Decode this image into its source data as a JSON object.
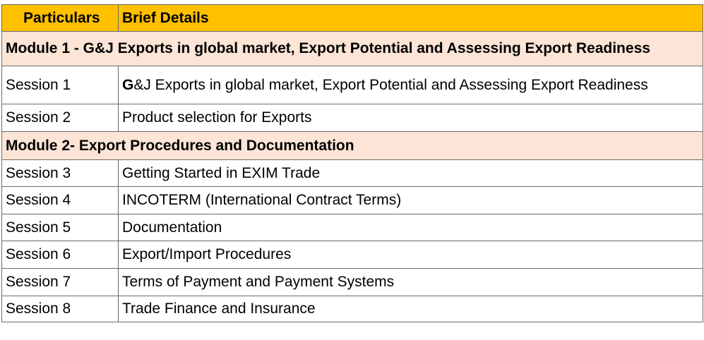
{
  "header": {
    "col1": "Particulars",
    "col2": "Brief Details"
  },
  "module1": {
    "title": "Module 1 - G&J Exports in global market, Export Potential and Assessing Export Readiness"
  },
  "module2": {
    "title": "Module 2- Export Procedures and Documentation"
  },
  "sessions": [
    {
      "label": "Session 1",
      "detail_first": "G",
      "detail_rest": "&J Exports in global market, Export Potential and Assessing Export Readiness"
    },
    {
      "label": "Session 2",
      "detail": "Product selection for Exports"
    },
    {
      "label": "Session 3",
      "detail": "Getting Started in EXIM Trade"
    },
    {
      "label": "Session 4",
      "detail": "INCOTERM (International Contract Terms)"
    },
    {
      "label": "Session 5",
      "detail": "Documentation"
    },
    {
      "label": "Session 6",
      "detail": "Export/Import Procedures"
    },
    {
      "label": "Session 7",
      "detail": "Terms of Payment and Payment Systems"
    },
    {
      "label": "Session 8",
      "detail": "Trade Finance and Insurance"
    }
  ],
  "colors": {
    "header_bg": "#ffc000",
    "module_bg": "#fce4d6",
    "border": "#6b6b6b"
  }
}
